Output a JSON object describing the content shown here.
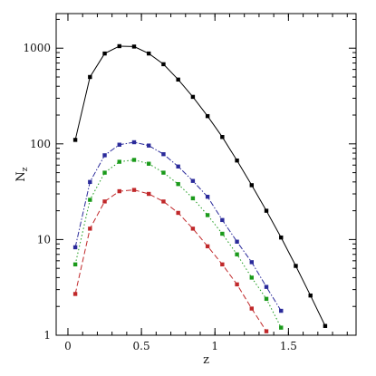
{
  "chart_data": {
    "type": "line",
    "xlabel": "z",
    "ylabel": "N",
    "ylabel_sub": "z",
    "xlim": [
      -0.08,
      1.96
    ],
    "ylim": [
      1,
      2300
    ],
    "yscale": "log",
    "grid": false,
    "x_ticks": [
      {
        "value": 0,
        "label": "0"
      },
      {
        "value": 0.5,
        "label": "0.5"
      },
      {
        "value": 1,
        "label": "1"
      },
      {
        "value": 1.5,
        "label": "1.5"
      }
    ],
    "y_ticks": [
      {
        "value": 1,
        "label": "1"
      },
      {
        "value": 10,
        "label": "10"
      },
      {
        "value": 100,
        "label": "100"
      },
      {
        "value": 1000,
        "label": "1000"
      }
    ],
    "series": [
      {
        "color": "#000000",
        "dash": "solid",
        "x": [
          0.05,
          0.15,
          0.25,
          0.35,
          0.45,
          0.55,
          0.65,
          0.75,
          0.85,
          0.95,
          1.05,
          1.15,
          1.25,
          1.35,
          1.45,
          1.55,
          1.65,
          1.75
        ],
        "y": [
          110,
          500,
          880,
          1050,
          1040,
          880,
          680,
          470,
          310,
          195,
          118,
          67,
          37,
          20,
          10.5,
          5.3,
          2.6,
          1.25
        ]
      },
      {
        "color": "#2a2a9a",
        "dash": "dashdot",
        "x": [
          0.05,
          0.15,
          0.25,
          0.35,
          0.45,
          0.55,
          0.65,
          0.75,
          0.85,
          0.95,
          1.05,
          1.15,
          1.25,
          1.35,
          1.45
        ],
        "y": [
          8.3,
          40,
          76,
          98,
          104,
          96,
          78,
          58,
          41,
          28,
          16,
          9.5,
          5.8,
          3.2,
          1.8
        ]
      },
      {
        "color": "#1a9a1a",
        "dash": "dotted",
        "x": [
          0.05,
          0.15,
          0.25,
          0.35,
          0.45,
          0.55,
          0.65,
          0.75,
          0.85,
          0.95,
          1.05,
          1.15,
          1.25,
          1.35,
          1.45
        ],
        "y": [
          5.5,
          26,
          50,
          65,
          68,
          62,
          50,
          38,
          27,
          18,
          11.5,
          7,
          4,
          2.4,
          1.2
        ]
      },
      {
        "color": "#c0282a",
        "dash": "dashed",
        "x": [
          0.05,
          0.15,
          0.25,
          0.35,
          0.45,
          0.55,
          0.65,
          0.75,
          0.85,
          0.95,
          1.05,
          1.15,
          1.25,
          1.35
        ],
        "y": [
          2.7,
          13,
          25,
          32,
          33,
          30,
          25,
          19,
          13,
          8.5,
          5.5,
          3.4,
          1.9,
          1.1
        ]
      }
    ]
  }
}
